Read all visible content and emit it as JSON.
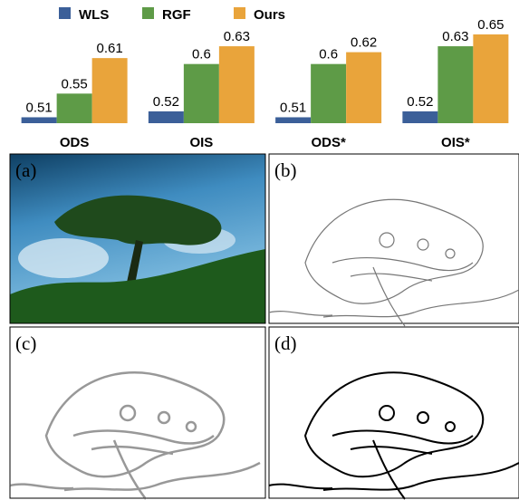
{
  "chart_data": {
    "type": "bar",
    "categories": [
      "ODS",
      "OIS",
      "ODS*",
      "OIS*"
    ],
    "series": [
      {
        "name": "WLS",
        "color": "#3b5f99",
        "values": [
          0.51,
          0.52,
          0.51,
          0.52
        ]
      },
      {
        "name": "RGF",
        "color": "#5e9b47",
        "values": [
          0.55,
          0.6,
          0.6,
          0.63
        ]
      },
      {
        "name": "Ours",
        "color": "#e9a43b",
        "values": [
          0.61,
          0.63,
          0.62,
          0.65
        ]
      }
    ],
    "ylim": [
      0.5,
      0.65
    ],
    "grid": false,
    "legend": "top"
  },
  "panels": [
    {
      "label": "(a)"
    },
    {
      "label": "(b)"
    },
    {
      "label": "(c)"
    },
    {
      "label": "(d)"
    }
  ]
}
